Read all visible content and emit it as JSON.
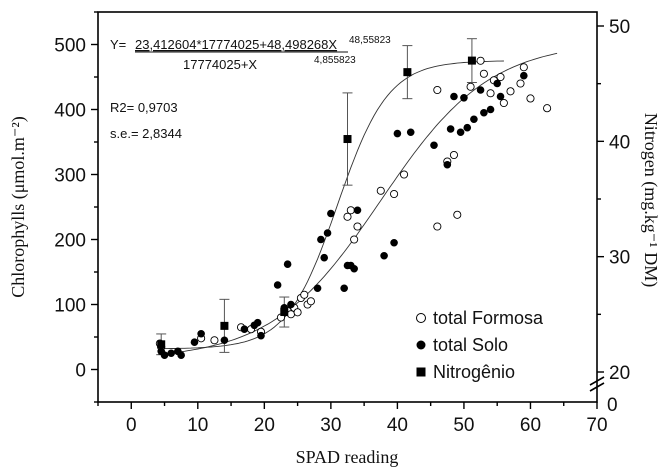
{
  "chart_data": {
    "type": "scatter",
    "xlabel": "SPAD reading",
    "ylabel_left": "Chlorophylls (μmol.m⁻²)",
    "ylabel_right": "Nitrogen (mg.kg⁻¹ DM)",
    "xlim": [
      -5,
      70
    ],
    "ylim": [
      -50,
      550
    ],
    "y2lim": [
      20,
      50
    ],
    "x_ticks": [
      "0",
      "10",
      "20",
      "30",
      "40",
      "50",
      "60",
      "70"
    ],
    "y_ticks": [
      "0",
      "100",
      "200",
      "300",
      "400",
      "500"
    ],
    "y2_ticks": [
      "20",
      "30",
      "40",
      "50"
    ],
    "y2_break_label": "0",
    "equation": {
      "lhs": "Y=",
      "numerator": "23,412604*17774025+48,498268X",
      "numerator_exp": "48,55823",
      "denominator": "17774025+X",
      "denominator_exp": "4,855823"
    },
    "r2_label": "R2= 0,9703",
    "se_label": "s.e.= 2,8344",
    "legend": [
      {
        "label": "total Formosa",
        "marker": "open-circle"
      },
      {
        "label": "total Solo",
        "marker": "filled-circle"
      },
      {
        "label": "Nitrogênio",
        "marker": "filled-square"
      }
    ],
    "series": [
      {
        "name": "total Formosa",
        "axis": "left",
        "points": [
          [
            4.3,
            40
          ],
          [
            4.5,
            35
          ],
          [
            10.5,
            48
          ],
          [
            12.5,
            45
          ],
          [
            16.5,
            65
          ],
          [
            18,
            62
          ],
          [
            19.5,
            58
          ],
          [
            22.5,
            80
          ],
          [
            23.5,
            90
          ],
          [
            24,
            85
          ],
          [
            24.5,
            95
          ],
          [
            25.5,
            110
          ],
          [
            25,
            88
          ],
          [
            26,
            115
          ],
          [
            26.5,
            100
          ],
          [
            27,
            105
          ],
          [
            32.5,
            235
          ],
          [
            33,
            245
          ],
          [
            33.5,
            200
          ],
          [
            34,
            220
          ],
          [
            37.5,
            275
          ],
          [
            39.5,
            270
          ],
          [
            41,
            300
          ],
          [
            46,
            430
          ],
          [
            46,
            220
          ],
          [
            47.5,
            320
          ],
          [
            48.5,
            330
          ],
          [
            49,
            238
          ],
          [
            51,
            435
          ],
          [
            52.5,
            475
          ],
          [
            53,
            455
          ],
          [
            54.5,
            445
          ],
          [
            55.5,
            450
          ],
          [
            54,
            425
          ],
          [
            56,
            410
          ],
          [
            57,
            428
          ],
          [
            59,
            465
          ],
          [
            60,
            417
          ],
          [
            62.5,
            402
          ],
          [
            58.5,
            440
          ]
        ]
      },
      {
        "name": "total Solo",
        "axis": "left",
        "points": [
          [
            4.5,
            28
          ],
          [
            5,
            22
          ],
          [
            6,
            25
          ],
          [
            7,
            28
          ],
          [
            7.5,
            22
          ],
          [
            9.5,
            42
          ],
          [
            10.5,
            55
          ],
          [
            14,
            45
          ],
          [
            17,
            62
          ],
          [
            18.5,
            68
          ],
          [
            19,
            72
          ],
          [
            19.5,
            52
          ],
          [
            22,
            130
          ],
          [
            23.5,
            162
          ],
          [
            23,
            95
          ],
          [
            24,
            100
          ],
          [
            28,
            125
          ],
          [
            28.5,
            200
          ],
          [
            29,
            172
          ],
          [
            29.5,
            210
          ],
          [
            30,
            240
          ],
          [
            32,
            125
          ],
          [
            32.5,
            160
          ],
          [
            33.5,
            155
          ],
          [
            33,
            160
          ],
          [
            34,
            245
          ],
          [
            38,
            175
          ],
          [
            39.5,
            195
          ],
          [
            40,
            363
          ],
          [
            42,
            365
          ],
          [
            45.5,
            345
          ],
          [
            47.5,
            315
          ],
          [
            48,
            370
          ],
          [
            48.5,
            420
          ],
          [
            49.5,
            365
          ],
          [
            50.5,
            372
          ],
          [
            51.5,
            385
          ],
          [
            50,
            418
          ],
          [
            52.5,
            430
          ],
          [
            53,
            395
          ],
          [
            54,
            400
          ],
          [
            55,
            440
          ],
          [
            55.5,
            420
          ],
          [
            59,
            452
          ]
        ]
      },
      {
        "name": "Nitrogênio",
        "axis": "right",
        "points": [
          [
            4.5,
            22.4
          ],
          [
            14,
            24.0
          ],
          [
            23,
            25.2
          ],
          [
            32.5,
            40.2
          ],
          [
            41.5,
            46.0
          ],
          [
            51.2,
            47.0
          ]
        ],
        "error": [
          0.9,
          2.3,
          1.3,
          4.0,
          2.3,
          1.9
        ]
      }
    ],
    "fit_curve_chlorophyll": "sigmoid",
    "fit_curve_nitrogen": "sigmoid"
  }
}
